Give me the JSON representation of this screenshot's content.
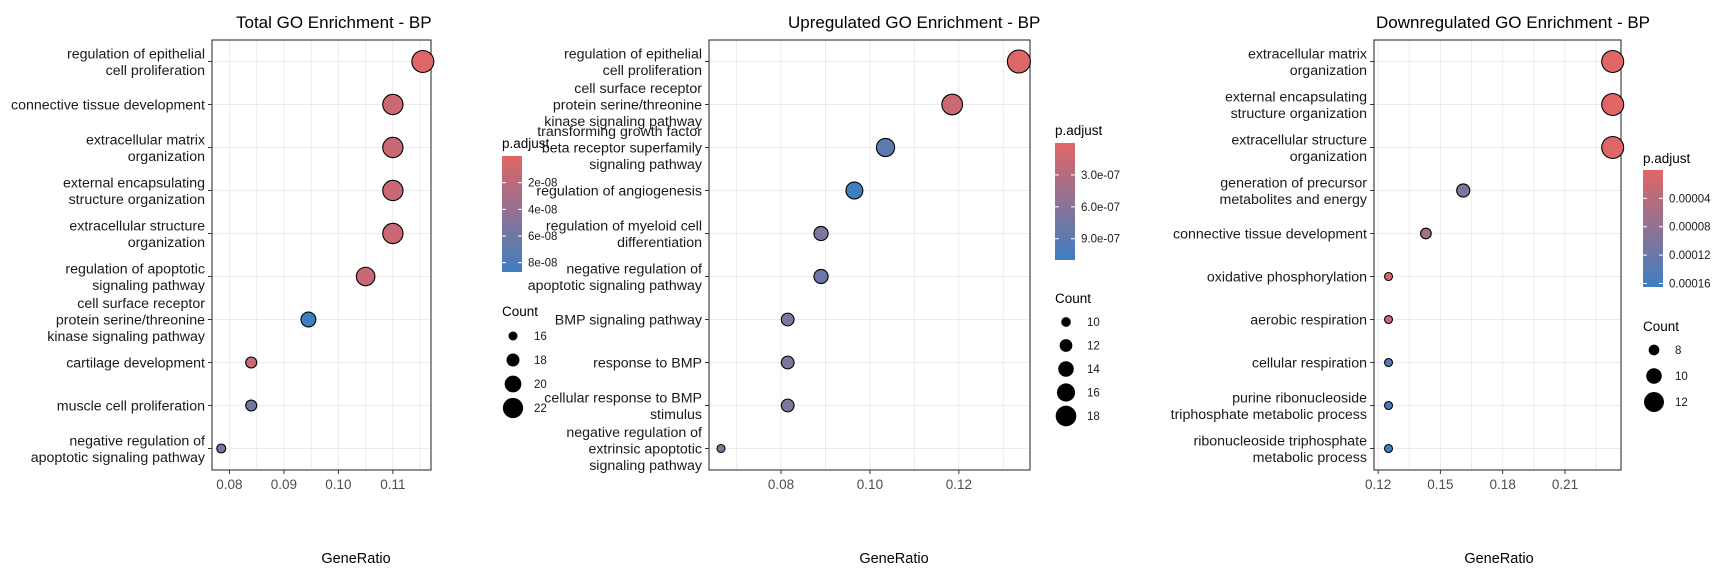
{
  "chart_data": [
    {
      "type": "scatter",
      "title": "Total GO Enrichment - BP",
      "xlabel": "GeneRatio",
      "ylabel": "",
      "xlim": [
        0.0768,
        0.117
      ],
      "xticks": [
        0.08,
        0.09,
        0.1,
        0.11
      ],
      "xtick_labels": [
        "0.08",
        "0.09",
        "0.10",
        "0.11"
      ],
      "grid": true,
      "legend_placement": "right",
      "color_legend": {
        "title": "p.adjust",
        "range": [
          0.0,
          8.7e-08
        ],
        "ticks": [
          2e-08,
          4e-08,
          6e-08,
          8e-08
        ],
        "tick_labels": [
          "2e-08",
          "4e-08",
          "6e-08",
          "8e-08"
        ],
        "low_color": "#E06666",
        "high_color": "#3D7FC1"
      },
      "size_legend": {
        "title": "Count",
        "values": [
          16,
          18,
          20,
          22
        ],
        "labels": [
          "16",
          "18",
          "20",
          "22"
        ]
      },
      "points": [
        {
          "term": [
            "regulation of epithelial",
            "cell proliferation"
          ],
          "gene_ratio": 0.1155,
          "count": 23,
          "p_adjust": 5e-10
        },
        {
          "term": [
            "connective tissue development"
          ],
          "gene_ratio": 0.11,
          "count": 22,
          "p_adjust": 1.2e-08
        },
        {
          "term": [
            "extracellular matrix",
            "organization"
          ],
          "gene_ratio": 0.11,
          "count": 22,
          "p_adjust": 1.2e-08
        },
        {
          "term": [
            "external encapsulating",
            "structure organization"
          ],
          "gene_ratio": 0.11,
          "count": 22,
          "p_adjust": 1.2e-08
        },
        {
          "term": [
            "extracellular structure",
            "organization"
          ],
          "gene_ratio": 0.11,
          "count": 22,
          "p_adjust": 1.2e-08
        },
        {
          "term": [
            "regulation of apoptotic",
            "signaling pathway"
          ],
          "gene_ratio": 0.105,
          "count": 21,
          "p_adjust": 1.2e-08
        },
        {
          "term": [
            "cell surface receptor",
            "protein serine/threonine",
            "kinase signaling pathway"
          ],
          "gene_ratio": 0.0945,
          "count": 19,
          "p_adjust": 8.7e-08
        },
        {
          "term": [
            "cartilage development"
          ],
          "gene_ratio": 0.084,
          "count": 17,
          "p_adjust": 1.2e-08
        },
        {
          "term": [
            "muscle cell proliferation"
          ],
          "gene_ratio": 0.084,
          "count": 17,
          "p_adjust": 6e-08
        },
        {
          "term": [
            "negative regulation of",
            "apoptotic signaling pathway"
          ],
          "gene_ratio": 0.0785,
          "count": 16,
          "p_adjust": 6e-08
        }
      ]
    },
    {
      "type": "scatter",
      "title": "Upregulated GO Enrichment - BP",
      "xlabel": "GeneRatio",
      "ylabel": "",
      "xlim": [
        0.0638,
        0.136
      ],
      "xticks": [
        0.08,
        0.1,
        0.12
      ],
      "xtick_labels": [
        "0.08",
        "0.10",
        "0.12"
      ],
      "grid": true,
      "legend_placement": "right",
      "color_legend": {
        "title": "p.adjust",
        "range": [
          0.0,
          1.1e-06
        ],
        "ticks": [
          3e-07,
          6e-07,
          9e-07
        ],
        "tick_labels": [
          "3.0e-07",
          "6.0e-07",
          "9.0e-07"
        ],
        "low_color": "#E06666",
        "high_color": "#3D7FC1"
      },
      "size_legend": {
        "title": "Count",
        "values": [
          10,
          12,
          14,
          16,
          18
        ],
        "labels": [
          "10",
          "12",
          "14",
          "16",
          "18"
        ]
      },
      "points": [
        {
          "term": [
            "regulation of epithelial",
            "cell proliferation"
          ],
          "gene_ratio": 0.1335,
          "count": 20,
          "p_adjust": 2e-08
        },
        {
          "term": [
            "cell surface receptor",
            "protein serine/threonine",
            "kinase signaling pathway"
          ],
          "gene_ratio": 0.1185,
          "count": 18,
          "p_adjust": 1.5e-07
        },
        {
          "term": [
            "transforming growth factor",
            "beta receptor superfamily",
            "signaling pathway"
          ],
          "gene_ratio": 0.1035,
          "count": 16,
          "p_adjust": 9e-07
        },
        {
          "term": [
            "regulation of angiogenesis"
          ],
          "gene_ratio": 0.0965,
          "count": 15,
          "p_adjust": 1.1e-06
        },
        {
          "term": [
            "regulation of myeloid cell",
            "differentiation"
          ],
          "gene_ratio": 0.089,
          "count": 13,
          "p_adjust": 6.5e-07
        },
        {
          "term": [
            "negative regulation of",
            "apoptotic signaling pathway"
          ],
          "gene_ratio": 0.089,
          "count": 13,
          "p_adjust": 8e-07
        },
        {
          "term": [
            "BMP signaling pathway"
          ],
          "gene_ratio": 0.0815,
          "count": 12,
          "p_adjust": 6.5e-07
        },
        {
          "term": [
            "response to BMP"
          ],
          "gene_ratio": 0.0815,
          "count": 12,
          "p_adjust": 6.5e-07
        },
        {
          "term": [
            "cellular response to BMP",
            "stimulus"
          ],
          "gene_ratio": 0.0815,
          "count": 12,
          "p_adjust": 6.5e-07
        },
        {
          "term": [
            "negative regulation of",
            "extrinsic apoptotic",
            "signaling pathway"
          ],
          "gene_ratio": 0.0665,
          "count": 9,
          "p_adjust": 6e-07
        }
      ]
    },
    {
      "type": "scatter",
      "title": "Downregulated GO Enrichment - BP",
      "xlabel": "GeneRatio",
      "ylabel": "",
      "xlim": [
        0.118,
        0.237
      ],
      "xticks": [
        0.12,
        0.15,
        0.18,
        0.21
      ],
      "xtick_labels": [
        "0.12",
        "0.15",
        "0.18",
        "0.21"
      ],
      "grid": true,
      "legend_placement": "right",
      "color_legend": {
        "title": "p.adjust",
        "range": [
          0.0,
          0.000165
        ],
        "ticks": [
          4e-05,
          8e-05,
          0.00012,
          0.00016
        ],
        "tick_labels": [
          "0.00004",
          "0.00008",
          "0.00012",
          "0.00016"
        ],
        "low_color": "#E06666",
        "high_color": "#3D7FC1"
      },
      "size_legend": {
        "title": "Count",
        "values": [
          8,
          10,
          12
        ],
        "labels": [
          "8",
          "10",
          "12"
        ]
      },
      "points": [
        {
          "term": [
            "extracellular matrix",
            "organization"
          ],
          "gene_ratio": 0.233,
          "count": 13,
          "p_adjust": 1e-07
        },
        {
          "term": [
            "external encapsulating",
            "structure organization"
          ],
          "gene_ratio": 0.233,
          "count": 13,
          "p_adjust": 1e-07
        },
        {
          "term": [
            "extracellular structure",
            "organization"
          ],
          "gene_ratio": 0.233,
          "count": 13,
          "p_adjust": 1e-07
        },
        {
          "term": [
            "generation of precursor",
            "metabolites and energy"
          ],
          "gene_ratio": 0.161,
          "count": 9,
          "p_adjust": 0.0001
        },
        {
          "term": [
            "connective tissue development"
          ],
          "gene_ratio": 0.143,
          "count": 8,
          "p_adjust": 6e-05
        },
        {
          "term": [
            "oxidative phosphorylation"
          ],
          "gene_ratio": 0.125,
          "count": 7,
          "p_adjust": 1e-05
        },
        {
          "term": [
            "aerobic respiration"
          ],
          "gene_ratio": 0.125,
          "count": 7,
          "p_adjust": 2.5e-05
        },
        {
          "term": [
            "cellular respiration"
          ],
          "gene_ratio": 0.125,
          "count": 7,
          "p_adjust": 0.00014
        },
        {
          "term": [
            "purine ribonucleoside",
            "triphosphate metabolic process"
          ],
          "gene_ratio": 0.125,
          "count": 7,
          "p_adjust": 0.00016
        },
        {
          "term": [
            "ribonucleoside triphosphate",
            "metabolic process"
          ],
          "gene_ratio": 0.125,
          "count": 7,
          "p_adjust": 0.00016
        }
      ]
    }
  ]
}
